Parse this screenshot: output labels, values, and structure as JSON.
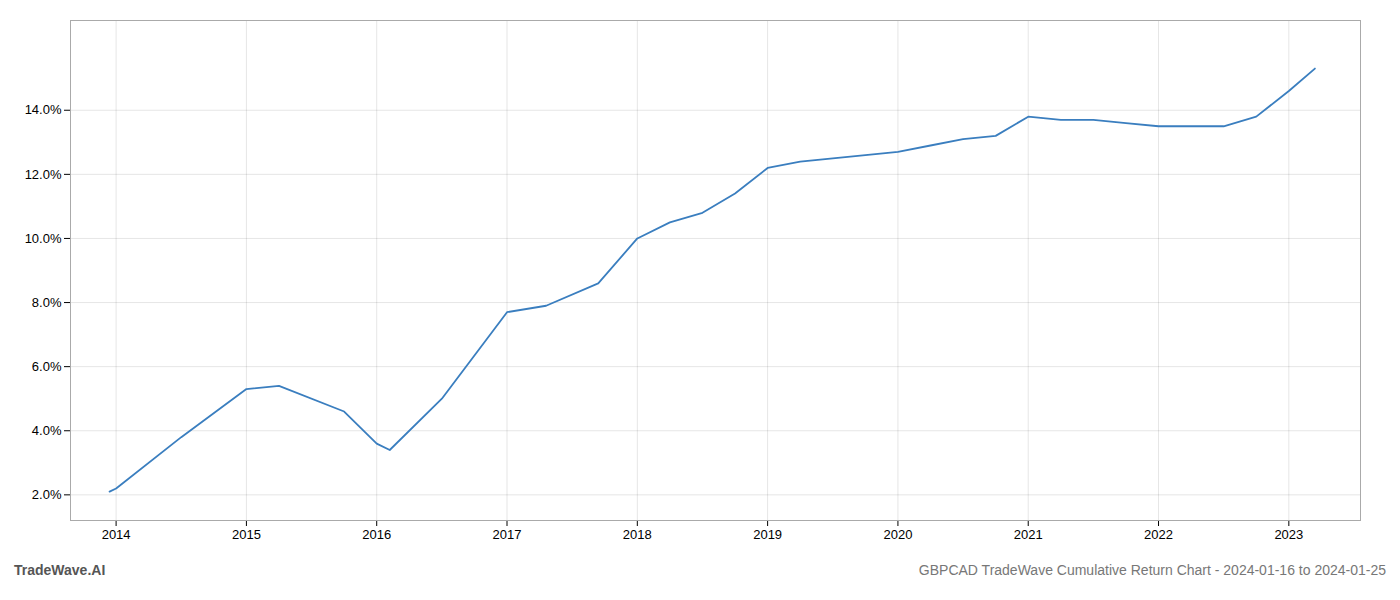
{
  "chart_data": {
    "type": "line",
    "title": "GBPCAD TradeWave Cumulative Return Chart - 2024-01-16 to 2024-01-25",
    "annotations": [
      "TradeWave.AI"
    ],
    "x": [
      2013.95,
      2014.0,
      2014.5,
      2015.0,
      2015.25,
      2015.75,
      2016.0,
      2016.1,
      2016.5,
      2017.0,
      2017.3,
      2017.7,
      2018.0,
      2018.25,
      2018.5,
      2018.75,
      2019.0,
      2019.25,
      2019.5,
      2019.75,
      2020.0,
      2020.25,
      2020.5,
      2020.75,
      2021.0,
      2021.25,
      2021.5,
      2021.75,
      2022.0,
      2022.25,
      2022.5,
      2022.75,
      2023.0,
      2023.2
    ],
    "values": [
      0.021,
      0.022,
      0.038,
      0.053,
      0.054,
      0.046,
      0.036,
      0.034,
      0.05,
      0.077,
      0.079,
      0.086,
      0.1,
      0.105,
      0.108,
      0.114,
      0.122,
      0.124,
      0.125,
      0.126,
      0.127,
      0.129,
      0.131,
      0.132,
      0.138,
      0.137,
      0.137,
      0.136,
      0.135,
      0.135,
      0.135,
      0.138,
      0.146,
      0.153
    ],
    "color": "#3a7ebf",
    "xlim": [
      2013.65,
      2023.55
    ],
    "xticks": [
      2014,
      2015,
      2016,
      2017,
      2018,
      2019,
      2020,
      2021,
      2022,
      2023
    ],
    "ylim": [
      0.012,
      0.168
    ],
    "yticks": [
      {
        "value": 0.02,
        "label": "2.0%"
      },
      {
        "value": 0.04,
        "label": "4.0%"
      },
      {
        "value": 0.06,
        "label": "6.0%"
      },
      {
        "value": 0.08,
        "label": "8.0%"
      },
      {
        "value": 0.1,
        "label": "10.0%"
      },
      {
        "value": 0.12,
        "label": "12.0%"
      },
      {
        "value": 0.14,
        "label": "14.0%"
      }
    ],
    "grid": true
  }
}
